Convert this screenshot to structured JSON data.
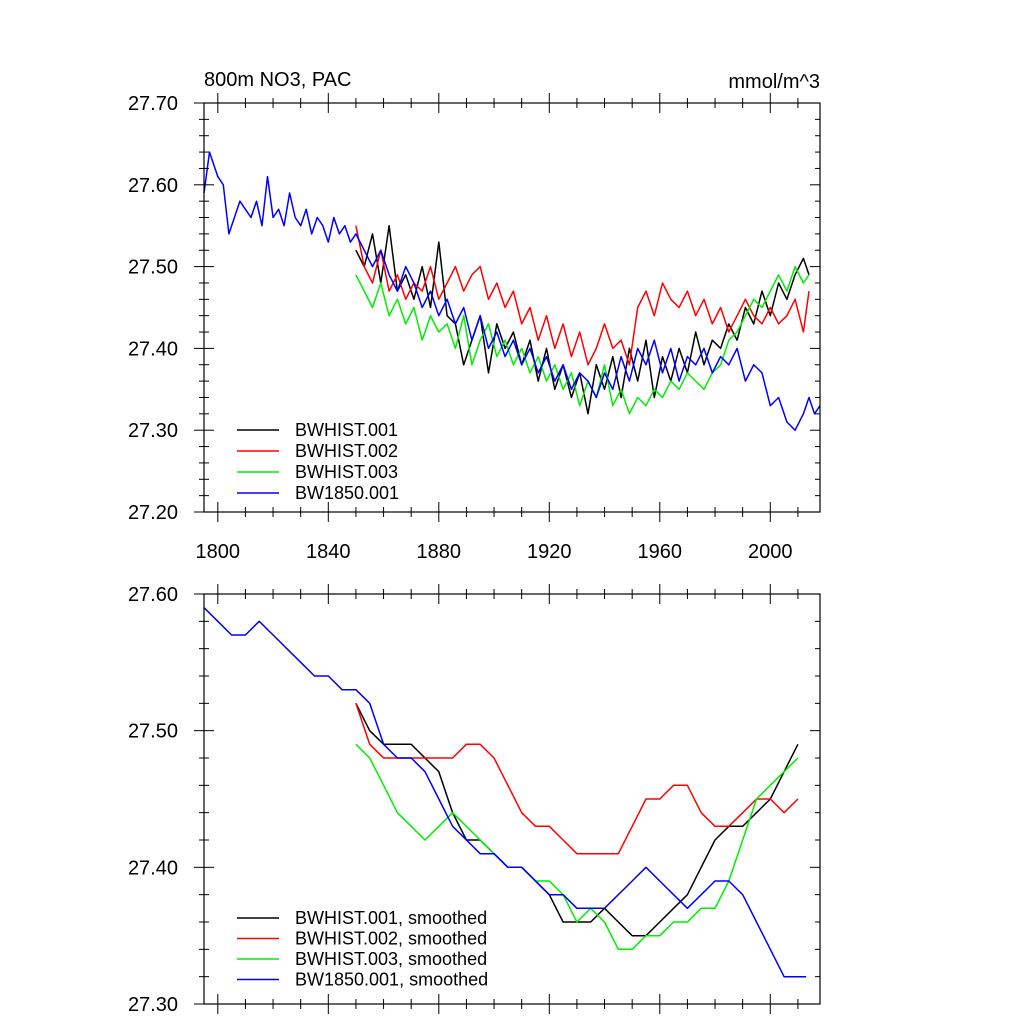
{
  "chart_data": [
    {
      "type": "line",
      "title": "800m NO3, PAC",
      "units": "mmol/m^3",
      "xlim": [
        1795,
        2018
      ],
      "ylim": [
        27.2,
        27.7
      ],
      "xticks": [
        1800,
        1840,
        1880,
        1920,
        1960,
        2000
      ],
      "yticks": [
        "27.20",
        "27.30",
        "27.40",
        "27.50",
        "27.60",
        "27.70"
      ],
      "legend_position": "bottom-left",
      "series": [
        {
          "name": "BWHIST.001",
          "color": "#000000",
          "x": [
            1850,
            1853,
            1856,
            1859,
            1862,
            1865,
            1868,
            1871,
            1874,
            1877,
            1880,
            1883,
            1886,
            1889,
            1892,
            1895,
            1898,
            1901,
            1904,
            1907,
            1910,
            1913,
            1916,
            1919,
            1922,
            1925,
            1928,
            1931,
            1934,
            1937,
            1940,
            1943,
            1946,
            1949,
            1952,
            1955,
            1958,
            1961,
            1964,
            1967,
            1970,
            1973,
            1976,
            1979,
            1982,
            1985,
            1988,
            1991,
            1994,
            1997,
            2000,
            2003,
            2006,
            2009,
            2012,
            2014
          ],
          "y": [
            27.52,
            27.5,
            27.54,
            27.48,
            27.55,
            27.47,
            27.49,
            27.46,
            27.5,
            27.45,
            27.53,
            27.44,
            27.43,
            27.38,
            27.41,
            27.44,
            27.37,
            27.43,
            27.4,
            27.42,
            27.38,
            27.41,
            27.36,
            27.4,
            27.35,
            27.38,
            27.34,
            27.37,
            27.32,
            27.38,
            27.35,
            27.39,
            27.34,
            27.4,
            27.36,
            27.41,
            27.34,
            27.39,
            27.36,
            27.4,
            27.37,
            27.42,
            27.38,
            27.41,
            27.4,
            27.43,
            27.41,
            27.45,
            27.43,
            27.47,
            27.44,
            27.48,
            27.46,
            27.49,
            27.51,
            27.49
          ]
        },
        {
          "name": "BWHIST.002",
          "color": "#ff0000",
          "x": [
            1850,
            1853,
            1856,
            1859,
            1862,
            1865,
            1868,
            1871,
            1874,
            1877,
            1880,
            1883,
            1886,
            1889,
            1892,
            1895,
            1898,
            1901,
            1904,
            1907,
            1910,
            1913,
            1916,
            1919,
            1922,
            1925,
            1928,
            1931,
            1934,
            1937,
            1940,
            1943,
            1946,
            1949,
            1952,
            1955,
            1958,
            1961,
            1964,
            1967,
            1970,
            1973,
            1976,
            1979,
            1982,
            1985,
            1988,
            1991,
            1994,
            1997,
            2000,
            2003,
            2006,
            2009,
            2012,
            2014
          ],
          "y": [
            27.55,
            27.5,
            27.48,
            27.52,
            27.47,
            27.49,
            27.46,
            27.48,
            27.47,
            27.5,
            27.46,
            27.48,
            27.5,
            27.47,
            27.49,
            27.5,
            27.46,
            27.48,
            27.45,
            27.47,
            27.43,
            27.45,
            27.41,
            27.44,
            27.4,
            27.43,
            27.39,
            27.42,
            27.38,
            27.4,
            27.43,
            27.4,
            27.41,
            27.38,
            27.45,
            27.47,
            27.44,
            27.48,
            27.46,
            27.45,
            27.47,
            27.44,
            27.46,
            27.43,
            27.45,
            27.42,
            27.44,
            27.46,
            27.44,
            27.43,
            27.45,
            27.43,
            27.44,
            27.46,
            27.42,
            27.47
          ]
        },
        {
          "name": "BWHIST.003",
          "color": "#00ee00",
          "x": [
            1850,
            1853,
            1856,
            1859,
            1862,
            1865,
            1868,
            1871,
            1874,
            1877,
            1880,
            1883,
            1886,
            1889,
            1892,
            1895,
            1898,
            1901,
            1904,
            1907,
            1910,
            1913,
            1916,
            1919,
            1922,
            1925,
            1928,
            1931,
            1934,
            1937,
            1940,
            1943,
            1946,
            1949,
            1952,
            1955,
            1958,
            1961,
            1964,
            1967,
            1970,
            1973,
            1976,
            1979,
            1982,
            1985,
            1988,
            1991,
            1994,
            1997,
            2000,
            2003,
            2006,
            2009,
            2012,
            2014
          ],
          "y": [
            27.49,
            27.47,
            27.45,
            27.48,
            27.44,
            27.46,
            27.43,
            27.45,
            27.41,
            27.44,
            27.42,
            27.43,
            27.4,
            27.44,
            27.38,
            27.41,
            27.43,
            27.39,
            27.41,
            27.38,
            27.4,
            27.37,
            27.39,
            27.36,
            27.38,
            27.35,
            27.37,
            27.33,
            27.36,
            27.34,
            27.38,
            27.33,
            27.35,
            27.32,
            27.34,
            27.33,
            27.35,
            27.34,
            27.36,
            27.35,
            27.37,
            27.36,
            27.35,
            27.37,
            27.38,
            27.41,
            27.42,
            27.44,
            27.46,
            27.45,
            27.47,
            27.49,
            27.47,
            27.5,
            27.48,
            27.49
          ]
        },
        {
          "name": "BW1850.001",
          "color": "#0000ff",
          "x": [
            1795,
            1797,
            1800,
            1802,
            1804,
            1806,
            1808,
            1810,
            1812,
            1814,
            1816,
            1818,
            1820,
            1822,
            1824,
            1826,
            1828,
            1830,
            1832,
            1834,
            1836,
            1838,
            1840,
            1842,
            1844,
            1846,
            1848,
            1850,
            1853,
            1856,
            1859,
            1862,
            1865,
            1868,
            1871,
            1874,
            1877,
            1880,
            1883,
            1886,
            1889,
            1892,
            1895,
            1898,
            1901,
            1904,
            1907,
            1910,
            1913,
            1916,
            1919,
            1922,
            1925,
            1928,
            1931,
            1934,
            1937,
            1940,
            1943,
            1946,
            1949,
            1952,
            1955,
            1958,
            1961,
            1964,
            1967,
            1970,
            1973,
            1976,
            1979,
            1982,
            1985,
            1988,
            1991,
            1994,
            1997,
            2000,
            2003,
            2006,
            2009,
            2012,
            2014,
            2016,
            2018
          ],
          "y": [
            27.59,
            27.64,
            27.61,
            27.6,
            27.54,
            27.56,
            27.58,
            27.57,
            27.56,
            27.58,
            27.55,
            27.61,
            27.56,
            27.57,
            27.55,
            27.59,
            27.56,
            27.55,
            27.57,
            27.54,
            27.56,
            27.55,
            27.53,
            27.56,
            27.54,
            27.55,
            27.53,
            27.54,
            27.52,
            27.5,
            27.52,
            27.49,
            27.47,
            27.5,
            27.48,
            27.45,
            27.47,
            27.44,
            27.46,
            27.43,
            27.45,
            27.41,
            27.44,
            27.4,
            27.42,
            27.39,
            27.41,
            27.38,
            27.4,
            27.37,
            27.39,
            27.36,
            27.38,
            27.35,
            27.37,
            27.36,
            27.34,
            27.37,
            27.35,
            27.39,
            27.36,
            27.4,
            27.38,
            27.41,
            27.37,
            27.4,
            27.36,
            27.39,
            27.38,
            27.4,
            27.37,
            27.39,
            27.38,
            27.4,
            27.36,
            27.38,
            27.37,
            27.33,
            27.34,
            27.31,
            27.3,
            27.32,
            27.34,
            27.32,
            27.33
          ]
        }
      ]
    },
    {
      "type": "line",
      "xlim": [
        1795,
        2018
      ],
      "ylim": [
        27.3,
        27.6
      ],
      "xticks": [
        1800,
        1840,
        1880,
        1920,
        1960,
        2000
      ],
      "yticks": [
        "27.30",
        "27.40",
        "27.50",
        "27.60"
      ],
      "legend_position": "bottom-left",
      "series": [
        {
          "name": "BWHIST.001, smoothed",
          "color": "#000000",
          "x": [
            1850,
            1855,
            1860,
            1865,
            1870,
            1875,
            1880,
            1885,
            1890,
            1895,
            1900,
            1905,
            1910,
            1915,
            1920,
            1925,
            1930,
            1935,
            1940,
            1945,
            1950,
            1955,
            1960,
            1965,
            1970,
            1975,
            1980,
            1985,
            1990,
            1995,
            2000,
            2005,
            2010
          ],
          "y": [
            27.52,
            27.5,
            27.49,
            27.49,
            27.49,
            27.48,
            27.47,
            27.44,
            27.42,
            27.42,
            27.41,
            27.4,
            27.4,
            27.39,
            27.38,
            27.36,
            27.36,
            27.36,
            27.37,
            27.36,
            27.35,
            27.35,
            27.36,
            27.37,
            27.38,
            27.4,
            27.42,
            27.43,
            27.43,
            27.44,
            27.45,
            27.47,
            27.49
          ]
        },
        {
          "name": "BWHIST.002, smoothed",
          "color": "#ff0000",
          "x": [
            1850,
            1855,
            1860,
            1865,
            1870,
            1875,
            1880,
            1885,
            1890,
            1895,
            1900,
            1905,
            1910,
            1915,
            1920,
            1925,
            1930,
            1935,
            1940,
            1945,
            1950,
            1955,
            1960,
            1965,
            1970,
            1975,
            1980,
            1985,
            1990,
            1995,
            2000,
            2005,
            2010
          ],
          "y": [
            27.52,
            27.49,
            27.48,
            27.48,
            27.48,
            27.48,
            27.48,
            27.48,
            27.49,
            27.49,
            27.48,
            27.46,
            27.44,
            27.43,
            27.43,
            27.42,
            27.41,
            27.41,
            27.41,
            27.41,
            27.43,
            27.45,
            27.45,
            27.46,
            27.46,
            27.44,
            27.43,
            27.43,
            27.44,
            27.45,
            27.45,
            27.44,
            27.45
          ]
        },
        {
          "name": "BWHIST.003, smoothed",
          "color": "#00ee00",
          "x": [
            1850,
            1855,
            1860,
            1865,
            1870,
            1875,
            1880,
            1885,
            1890,
            1895,
            1900,
            1905,
            1910,
            1915,
            1920,
            1925,
            1930,
            1935,
            1940,
            1945,
            1950,
            1955,
            1960,
            1965,
            1970,
            1975,
            1980,
            1985,
            1990,
            1995,
            2000,
            2005,
            2010
          ],
          "y": [
            27.49,
            27.48,
            27.46,
            27.44,
            27.43,
            27.42,
            27.43,
            27.44,
            27.43,
            27.42,
            27.41,
            27.4,
            27.4,
            27.39,
            27.39,
            27.38,
            27.36,
            27.37,
            27.36,
            27.34,
            27.34,
            27.35,
            27.35,
            27.36,
            27.36,
            27.37,
            27.37,
            27.39,
            27.42,
            27.45,
            27.46,
            27.47,
            27.48
          ]
        },
        {
          "name": "BW1850.001, smoothed",
          "color": "#0000ff",
          "x": [
            1795,
            1800,
            1805,
            1810,
            1815,
            1820,
            1825,
            1830,
            1835,
            1840,
            1845,
            1850,
            1855,
            1860,
            1865,
            1870,
            1875,
            1880,
            1885,
            1890,
            1895,
            1900,
            1905,
            1910,
            1915,
            1920,
            1925,
            1930,
            1935,
            1940,
            1945,
            1950,
            1955,
            1960,
            1965,
            1970,
            1975,
            1980,
            1985,
            1990,
            1995,
            2000,
            2005,
            2010,
            2013
          ],
          "y": [
            27.59,
            27.58,
            27.57,
            27.57,
            27.58,
            27.57,
            27.56,
            27.55,
            27.54,
            27.54,
            27.53,
            27.53,
            27.52,
            27.49,
            27.48,
            27.48,
            27.47,
            27.45,
            27.43,
            27.42,
            27.41,
            27.41,
            27.4,
            27.4,
            27.39,
            27.38,
            27.38,
            27.37,
            27.37,
            27.37,
            27.38,
            27.39,
            27.4,
            27.39,
            27.38,
            27.37,
            27.38,
            27.39,
            27.39,
            27.38,
            27.36,
            27.34,
            27.32,
            27.32,
            27.32
          ]
        }
      ]
    }
  ]
}
